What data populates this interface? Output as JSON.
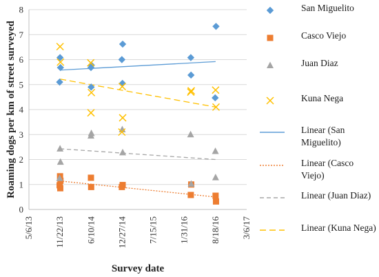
{
  "chart_data": {
    "type": "scatter",
    "xlabel": "Survey date",
    "ylabel": "Roaming dogs per km of street surveyed",
    "ylim": [
      0,
      8
    ],
    "yticks": [
      0,
      1,
      2,
      3,
      4,
      5,
      6,
      7,
      8
    ],
    "xticks": [
      "5/6/13",
      "11/22/13",
      "6/10/14",
      "12/27/14",
      "7/15/15",
      "1/31/16",
      "8/18/16",
      "3/6/17"
    ],
    "grid": "horizontal",
    "legend_position": "right",
    "series": [
      {
        "name": "San Miguelito",
        "marker": "diamond",
        "color": "#5b9bd5",
        "points": [
          [
            "11/22/13",
            6.08
          ],
          [
            "11/22/13",
            5.68
          ],
          [
            "11/22/13",
            5.1
          ],
          [
            "6/10/14",
            5.78
          ],
          [
            "6/10/14",
            5.68
          ],
          [
            "6/10/14",
            4.9
          ],
          [
            "12/27/14",
            6.62
          ],
          [
            "12/27/14",
            6.0
          ],
          [
            "12/27/14",
            5.05
          ],
          [
            "3/13/16",
            6.08
          ],
          [
            "3/13/16",
            5.38
          ],
          [
            "8/18/16",
            7.33
          ],
          [
            "8/18/16",
            4.47
          ]
        ]
      },
      {
        "name": "Casco Viejo",
        "marker": "square",
        "color": "#ed7d31",
        "points": [
          [
            "11/22/13",
            1.33
          ],
          [
            "11/22/13",
            1.15
          ],
          [
            "11/22/13",
            0.97
          ],
          [
            "11/22/13",
            0.85
          ],
          [
            "6/10/14",
            1.27
          ],
          [
            "6/10/14",
            0.9
          ],
          [
            "12/27/14",
            0.98
          ],
          [
            "12/27/14",
            0.9
          ],
          [
            "3/13/16",
            1.0
          ],
          [
            "3/13/16",
            0.58
          ],
          [
            "8/18/16",
            0.55
          ],
          [
            "8/18/16",
            0.32
          ]
        ]
      },
      {
        "name": "Juan Diaz",
        "marker": "triangle",
        "color": "#a5a5a5",
        "points": [
          [
            "11/22/13",
            2.43
          ],
          [
            "11/22/13",
            1.9
          ],
          [
            "11/22/13",
            1.25
          ],
          [
            "6/10/14",
            3.05
          ],
          [
            "6/10/14",
            2.95
          ],
          [
            "12/27/14",
            3.2
          ],
          [
            "12/27/14",
            2.28
          ],
          [
            "3/13/16",
            3.0
          ],
          [
            "3/13/16",
            1.02
          ],
          [
            "8/18/16",
            2.33
          ],
          [
            "8/18/16",
            1.28
          ]
        ]
      },
      {
        "name": "Kuna Nega",
        "marker": "x",
        "color": "#ffc000",
        "points": [
          [
            "11/22/13",
            6.52
          ],
          [
            "11/22/13",
            5.9
          ],
          [
            "6/10/14",
            5.87
          ],
          [
            "6/10/14",
            4.68
          ],
          [
            "6/10/14",
            3.87
          ],
          [
            "12/27/14",
            4.92
          ],
          [
            "12/27/14",
            3.67
          ],
          [
            "12/27/14",
            3.1
          ],
          [
            "3/13/16",
            4.75
          ],
          [
            "3/13/16",
            4.7
          ],
          [
            "8/18/16",
            4.78
          ],
          [
            "8/18/16",
            4.1
          ]
        ]
      }
    ],
    "trendlines": [
      {
        "name": "Linear (San Miguelito)",
        "color": "#5b9bd5",
        "dash": "solid",
        "start": [
          "11/22/13",
          5.58
        ],
        "end": [
          "8/18/16",
          5.92
        ]
      },
      {
        "name": "Linear (Casco Viejo)",
        "color": "#ed7d31",
        "dash": "dotted",
        "start": [
          "11/22/13",
          1.14
        ],
        "end": [
          "8/18/16",
          0.5
        ]
      },
      {
        "name": "Linear (Juan Diaz)",
        "color": "#a5a5a5",
        "dash": "dashed",
        "start": [
          "11/22/13",
          2.43
        ],
        "end": [
          "8/18/16",
          2.0
        ]
      },
      {
        "name": "Linear (Kuna Nega)",
        "color": "#ffc000",
        "dash": "longdash",
        "start": [
          "11/22/13",
          5.22
        ],
        "end": [
          "8/18/16",
          4.1
        ]
      }
    ]
  },
  "legend": {
    "items": [
      {
        "label": "San Miguelito",
        "kind": "marker",
        "ref": "s0"
      },
      {
        "label": "Casco Viejo",
        "kind": "marker",
        "ref": "s1"
      },
      {
        "label": "Juan Diaz",
        "kind": "marker",
        "ref": "s2"
      },
      {
        "label": "Kuna Nega",
        "kind": "marker",
        "ref": "s3"
      },
      {
        "label": "Linear (San Miguelito)",
        "kind": "line",
        "ref": "t0"
      },
      {
        "label": "Linear (Casco Viejo)",
        "kind": "line",
        "ref": "t1"
      },
      {
        "label": "Linear (Juan Diaz)",
        "kind": "line",
        "ref": "t2"
      },
      {
        "label": "Linear (Kuna Nega)",
        "kind": "line",
        "ref": "t3"
      }
    ]
  }
}
